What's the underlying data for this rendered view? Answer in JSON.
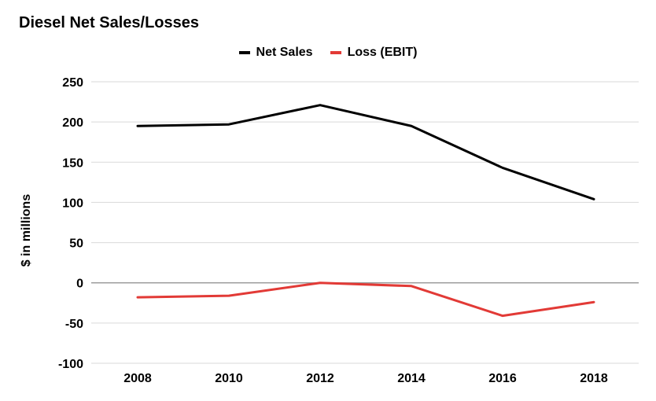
{
  "chart_data": {
    "type": "line",
    "title": "Diesel Net Sales/Losses",
    "ylabel": "$ in millions",
    "xlabel": "",
    "categories": [
      "2008",
      "2010",
      "2012",
      "2014",
      "2016",
      "2018"
    ],
    "ylim": [
      -100,
      250
    ],
    "yticks": [
      250,
      200,
      150,
      100,
      50,
      0,
      -50,
      -100
    ],
    "grid": true,
    "legend": "top-center",
    "series": [
      {
        "name": "Net Sales",
        "color": "#000000",
        "values": [
          195,
          197,
          221,
          195,
          143,
          104
        ]
      },
      {
        "name": "Loss (EBIT)",
        "color": "#e23a36",
        "values": [
          -18,
          -16,
          0,
          -4,
          -41,
          -24
        ]
      }
    ]
  }
}
